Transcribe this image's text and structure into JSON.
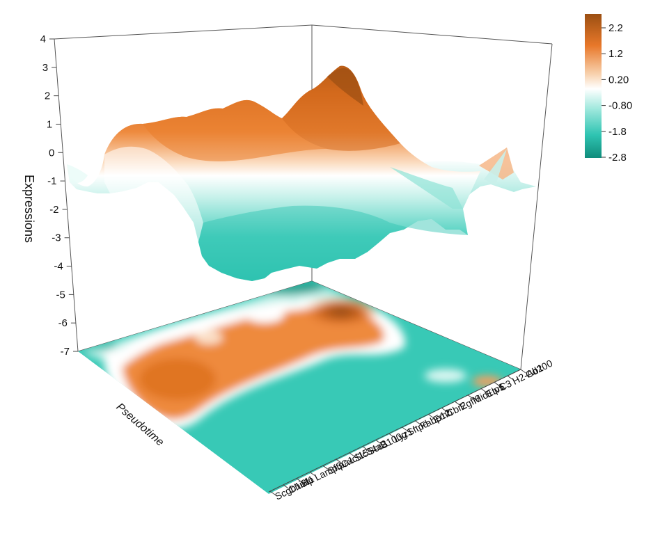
{
  "chart_data": {
    "type": "surface3d",
    "title": "",
    "zlabel": "Expressions",
    "xlabel": "Pseudotime",
    "ylabel": "",
    "zlim": [
      -7,
      4
    ],
    "z_ticks": [
      "4",
      "3",
      "2",
      "1",
      "0",
      "-1",
      "-2",
      "-3",
      "-4",
      "-5",
      "-6",
      "-7"
    ],
    "genes": [
      "Scgb1a1",
      "Chi3l1",
      "Hp",
      "Lamp3",
      "Sftpa1",
      "Cxcl15",
      "Slc34a2",
      "Scd1",
      "S100g",
      "Lyz1",
      "Sftpd",
      "Fabp12",
      "Emb",
      "Cbr2",
      "Egfl6",
      "Mid1ip1",
      "Etv5",
      "C3",
      "H2-Ab1",
      "Cd200"
    ],
    "projection": "heatmap projected on floor (z = -7)",
    "colorbar": {
      "labels": [
        "2.2",
        "1.2",
        "0.20",
        "-0.80",
        "-1.8",
        "-2.8"
      ],
      "stops": [
        "#9b4f12",
        "#e8782a",
        "#f7c79e",
        "#ffffff",
        "#a6ebe0",
        "#2fc4b2",
        "#0f8c7b"
      ]
    },
    "colors": {
      "high": "#9b4f12",
      "mid_high": "#e8782a",
      "mid": "#ffffff",
      "mid_low": "#2fc4b2",
      "low": "#0f8c7b"
    }
  }
}
